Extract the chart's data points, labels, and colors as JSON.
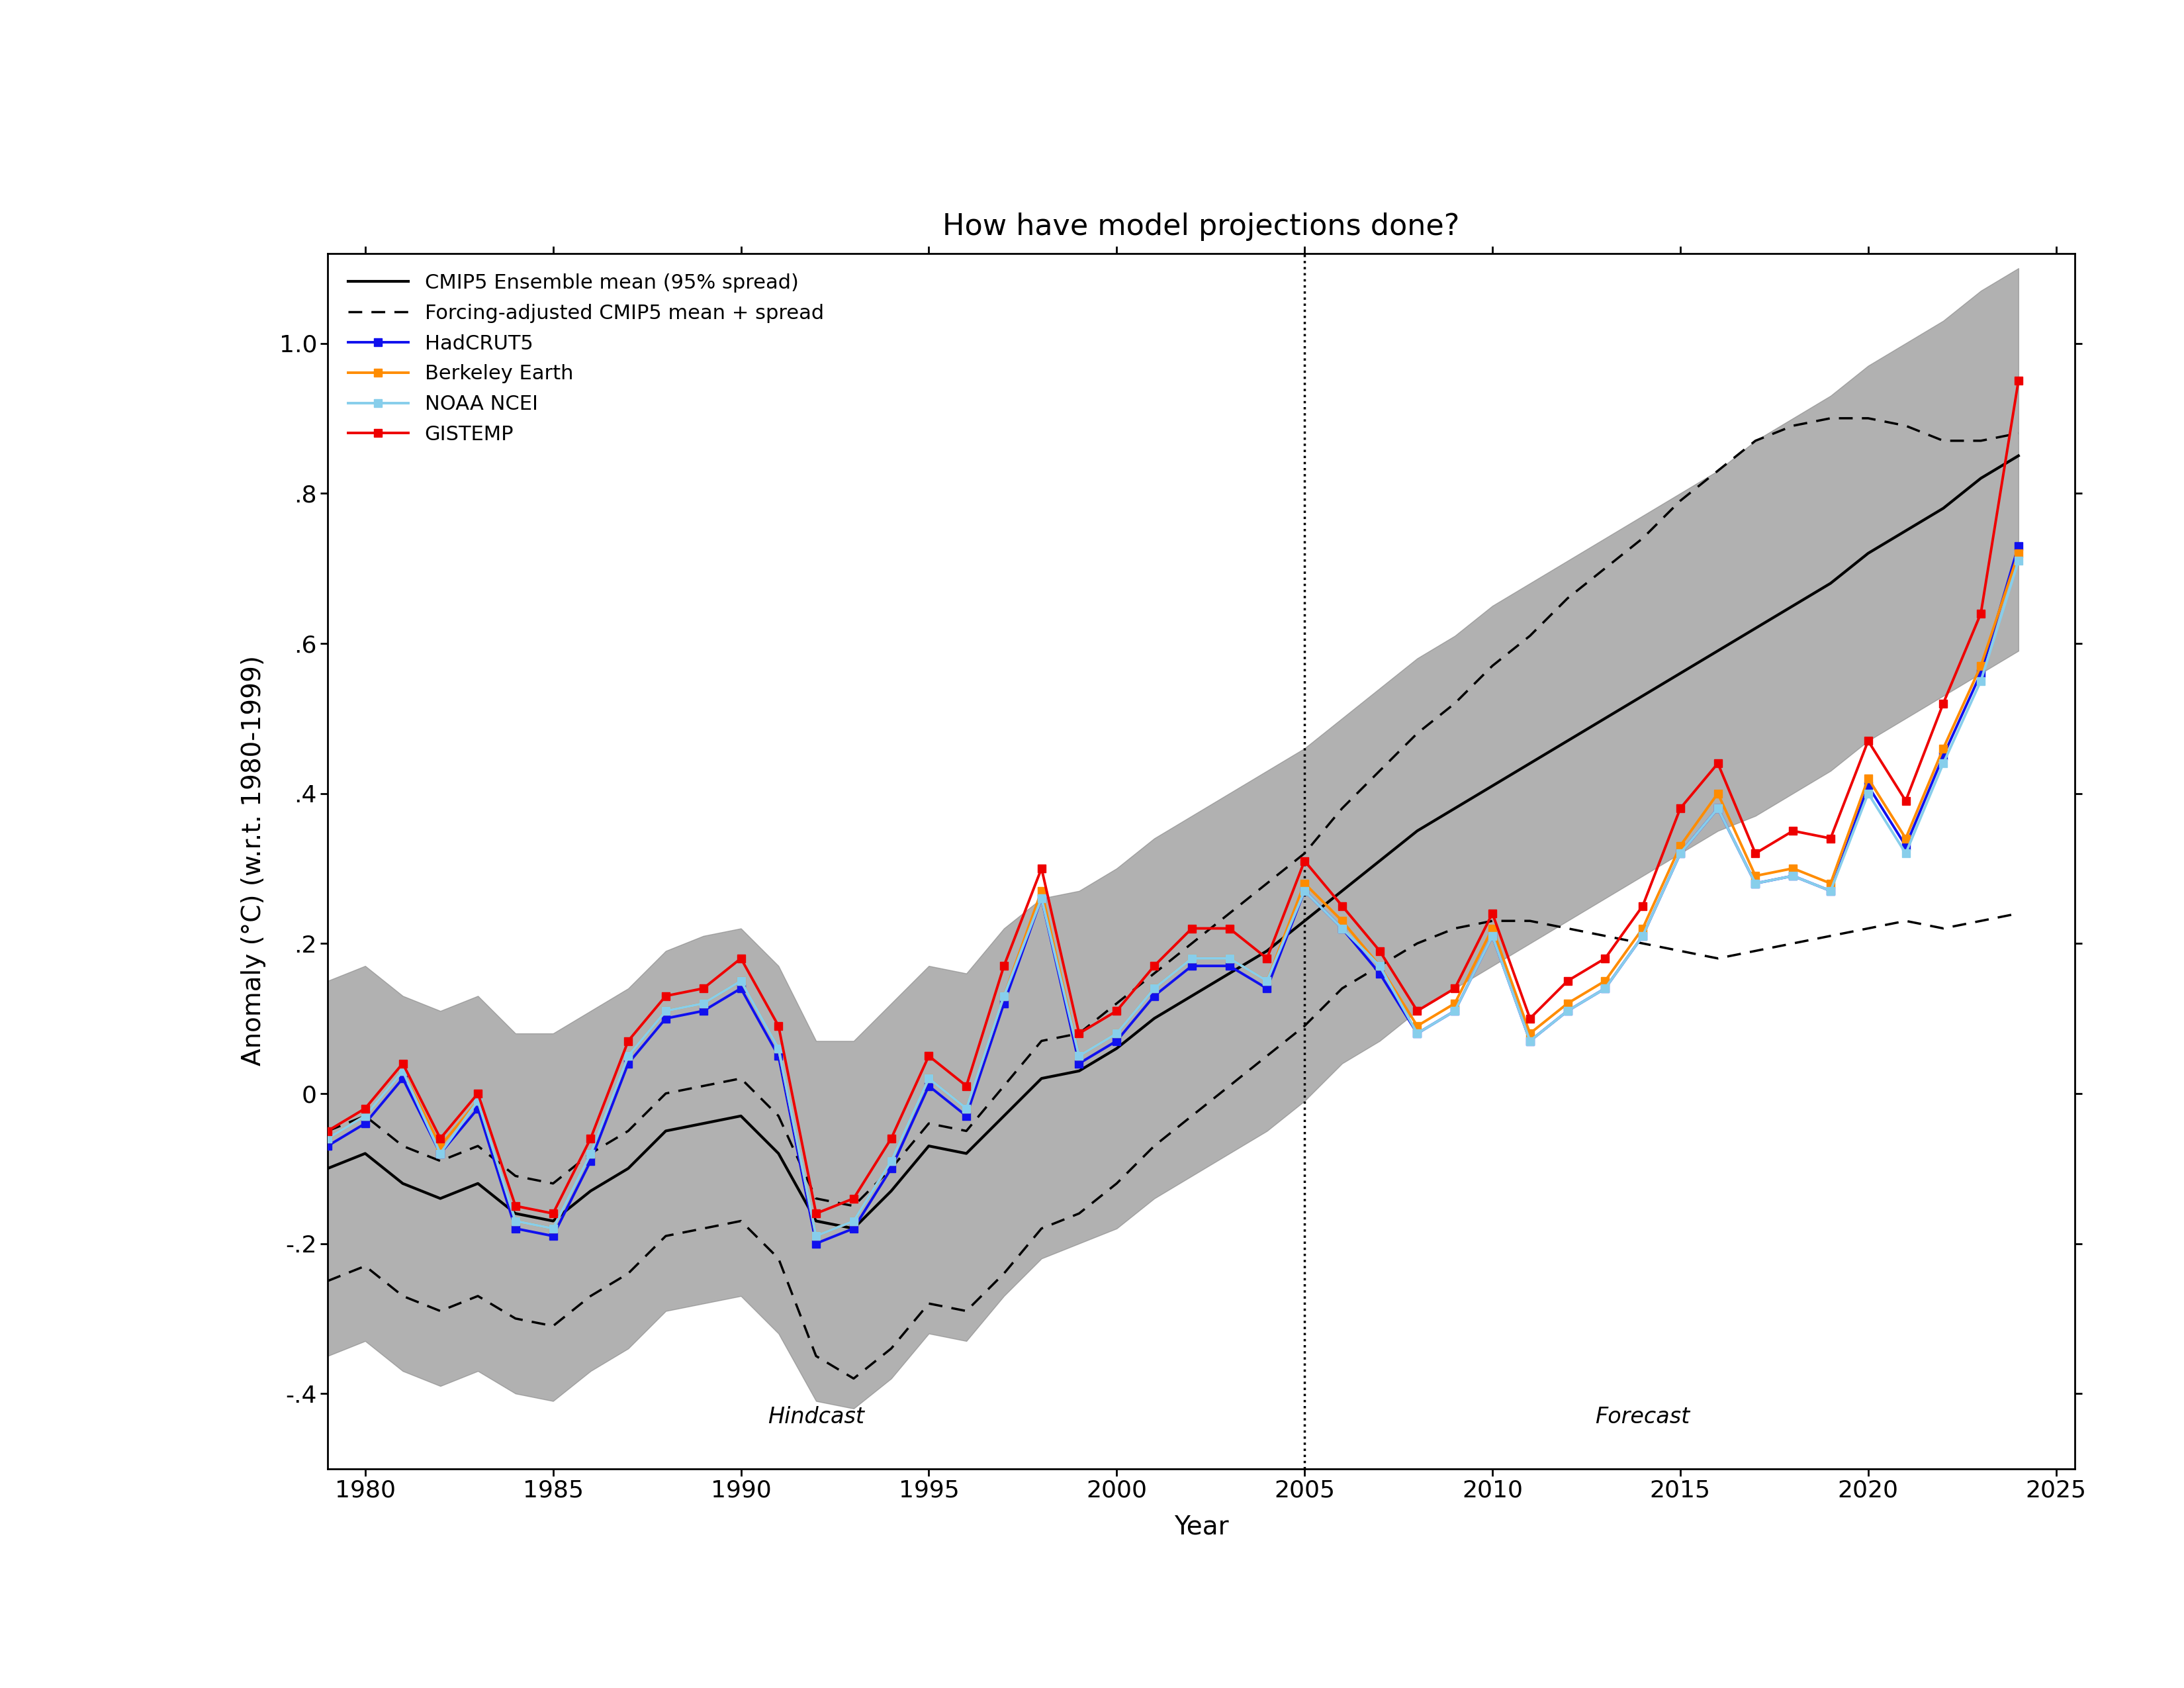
{
  "title": "How have model projections done?",
  "xlabel": "Year",
  "ylabel": "Anomaly (°C) (w.r.t. 1980-1999)",
  "xlim": [
    1979,
    2025.5
  ],
  "ylim": [
    -0.5,
    1.12
  ],
  "yticks": [
    -0.4,
    -0.2,
    0.0,
    0.2,
    0.4,
    0.6,
    0.8,
    1.0
  ],
  "ytick_labels": [
    "-.4",
    "-.2",
    "0",
    ".2",
    ".4",
    ".6",
    ".8",
    "1.0"
  ],
  "xticks": [
    1980,
    1985,
    1990,
    1995,
    2000,
    2005,
    2010,
    2015,
    2020,
    2025
  ],
  "hindcast_divider": 2005,
  "cmip5_mean_years": [
    1979,
    1980,
    1981,
    1982,
    1983,
    1984,
    1985,
    1986,
    1987,
    1988,
    1989,
    1990,
    1991,
    1992,
    1993,
    1994,
    1995,
    1996,
    1997,
    1998,
    1999,
    2000,
    2001,
    2002,
    2003,
    2004,
    2005,
    2006,
    2007,
    2008,
    2009,
    2010,
    2011,
    2012,
    2013,
    2014,
    2015,
    2016,
    2017,
    2018,
    2019,
    2020,
    2021,
    2022,
    2023,
    2024
  ],
  "cmip5_mean_vals": [
    -0.1,
    -0.08,
    -0.12,
    -0.14,
    -0.12,
    -0.16,
    -0.17,
    -0.13,
    -0.1,
    -0.05,
    -0.04,
    -0.03,
    -0.08,
    -0.17,
    -0.18,
    -0.13,
    -0.07,
    -0.08,
    -0.03,
    0.02,
    0.03,
    0.06,
    0.1,
    0.13,
    0.16,
    0.19,
    0.23,
    0.27,
    0.31,
    0.35,
    0.38,
    0.41,
    0.44,
    0.47,
    0.5,
    0.53,
    0.56,
    0.59,
    0.62,
    0.65,
    0.68,
    0.72,
    0.75,
    0.78,
    0.82,
    0.85
  ],
  "cmip5_upper_vals": [
    0.15,
    0.17,
    0.13,
    0.11,
    0.13,
    0.08,
    0.08,
    0.11,
    0.14,
    0.19,
    0.21,
    0.22,
    0.17,
    0.07,
    0.07,
    0.12,
    0.17,
    0.16,
    0.22,
    0.26,
    0.27,
    0.3,
    0.34,
    0.37,
    0.4,
    0.43,
    0.46,
    0.5,
    0.54,
    0.58,
    0.61,
    0.65,
    0.68,
    0.71,
    0.74,
    0.77,
    0.8,
    0.83,
    0.87,
    0.9,
    0.93,
    0.97,
    1.0,
    1.03,
    1.07,
    1.1
  ],
  "cmip5_lower_vals": [
    -0.35,
    -0.33,
    -0.37,
    -0.39,
    -0.37,
    -0.4,
    -0.41,
    -0.37,
    -0.34,
    -0.29,
    -0.28,
    -0.27,
    -0.32,
    -0.41,
    -0.42,
    -0.38,
    -0.32,
    -0.33,
    -0.27,
    -0.22,
    -0.2,
    -0.18,
    -0.14,
    -0.11,
    -0.08,
    -0.05,
    -0.01,
    0.04,
    0.07,
    0.11,
    0.14,
    0.17,
    0.2,
    0.23,
    0.26,
    0.29,
    0.32,
    0.35,
    0.37,
    0.4,
    0.43,
    0.47,
    0.5,
    0.53,
    0.56,
    0.59
  ],
  "forcing_upper_vals": [
    -0.05,
    -0.03,
    -0.07,
    -0.09,
    -0.07,
    -0.11,
    -0.12,
    -0.08,
    -0.05,
    0.0,
    0.01,
    0.02,
    -0.03,
    -0.14,
    -0.15,
    -0.1,
    -0.04,
    -0.05,
    0.01,
    0.07,
    0.08,
    0.12,
    0.16,
    0.2,
    0.24,
    0.28,
    0.32,
    0.38,
    0.43,
    0.48,
    0.52,
    0.57,
    0.61,
    0.66,
    0.7,
    0.74,
    0.79,
    0.83,
    0.87,
    0.89,
    0.9,
    0.9,
    0.89,
    0.87,
    0.87,
    0.88
  ],
  "forcing_lower_vals": [
    -0.25,
    -0.23,
    -0.27,
    -0.29,
    -0.27,
    -0.3,
    -0.31,
    -0.27,
    -0.24,
    -0.19,
    -0.18,
    -0.17,
    -0.22,
    -0.35,
    -0.38,
    -0.34,
    -0.28,
    -0.29,
    -0.24,
    -0.18,
    -0.16,
    -0.12,
    -0.07,
    -0.03,
    0.01,
    0.05,
    0.09,
    0.14,
    0.17,
    0.2,
    0.22,
    0.23,
    0.23,
    0.22,
    0.21,
    0.2,
    0.19,
    0.18,
    0.19,
    0.2,
    0.21,
    0.22,
    0.23,
    0.22,
    0.23,
    0.24
  ],
  "obs_years": [
    1979,
    1980,
    1981,
    1982,
    1983,
    1984,
    1985,
    1986,
    1987,
    1988,
    1989,
    1990,
    1991,
    1992,
    1993,
    1994,
    1995,
    1996,
    1997,
    1998,
    1999,
    2000,
    2001,
    2002,
    2003,
    2004,
    2005,
    2006,
    2007,
    2008,
    2009,
    2010,
    2011,
    2012,
    2013,
    2014,
    2015,
    2016,
    2017,
    2018,
    2019,
    2020,
    2021,
    2022,
    2023,
    2024
  ],
  "hadcrut5": [
    -0.07,
    -0.04,
    0.02,
    -0.08,
    -0.02,
    -0.18,
    -0.19,
    -0.09,
    0.04,
    0.1,
    0.11,
    0.14,
    0.05,
    -0.2,
    -0.18,
    -0.1,
    0.01,
    -0.03,
    0.12,
    0.26,
    0.04,
    0.07,
    0.13,
    0.17,
    0.17,
    0.14,
    0.27,
    0.22,
    0.16,
    0.08,
    0.11,
    0.21,
    0.07,
    0.11,
    0.14,
    0.21,
    0.32,
    0.38,
    0.28,
    0.29,
    0.27,
    0.41,
    0.33,
    0.45,
    0.56,
    0.73
  ],
  "berkeley": [
    -0.06,
    -0.03,
    0.03,
    -0.07,
    -0.01,
    -0.17,
    -0.18,
    -0.08,
    0.05,
    0.11,
    0.12,
    0.15,
    0.06,
    -0.19,
    -0.17,
    -0.09,
    0.02,
    -0.02,
    0.13,
    0.27,
    0.05,
    0.08,
    0.14,
    0.18,
    0.18,
    0.15,
    0.28,
    0.23,
    0.17,
    0.09,
    0.12,
    0.22,
    0.08,
    0.12,
    0.15,
    0.22,
    0.33,
    0.4,
    0.29,
    0.3,
    0.28,
    0.42,
    0.34,
    0.46,
    0.57,
    0.72
  ],
  "noaa_ncei": [
    -0.06,
    -0.03,
    0.03,
    -0.08,
    -0.01,
    -0.17,
    -0.18,
    -0.08,
    0.05,
    0.11,
    0.12,
    0.15,
    0.06,
    -0.19,
    -0.17,
    -0.09,
    0.02,
    -0.02,
    0.13,
    0.26,
    0.05,
    0.08,
    0.14,
    0.18,
    0.18,
    0.15,
    0.27,
    0.22,
    0.17,
    0.08,
    0.11,
    0.21,
    0.07,
    0.11,
    0.14,
    0.21,
    0.32,
    0.38,
    0.28,
    0.29,
    0.27,
    0.4,
    0.32,
    0.44,
    0.55,
    0.71
  ],
  "gistemp": [
    -0.05,
    -0.02,
    0.04,
    -0.06,
    0.0,
    -0.15,
    -0.16,
    -0.06,
    0.07,
    0.13,
    0.14,
    0.18,
    0.09,
    -0.16,
    -0.14,
    -0.06,
    0.05,
    0.01,
    0.17,
    0.3,
    0.08,
    0.11,
    0.17,
    0.22,
    0.22,
    0.18,
    0.31,
    0.25,
    0.19,
    0.11,
    0.14,
    0.24,
    0.1,
    0.15,
    0.18,
    0.25,
    0.38,
    0.44,
    0.32,
    0.35,
    0.34,
    0.47,
    0.39,
    0.52,
    0.64,
    0.95
  ],
  "hadcrut5_color": "#1010EE",
  "berkeley_color": "#FF8C00",
  "noaa_color": "#87CEEB",
  "gistemp_color": "#EE0000",
  "cmip5_fill_color": "#888888",
  "bg_color": "#FFFFFF",
  "title_fontsize": 32,
  "label_fontsize": 28,
  "tick_fontsize": 26,
  "legend_fontsize": 22,
  "annot_fontsize": 24
}
